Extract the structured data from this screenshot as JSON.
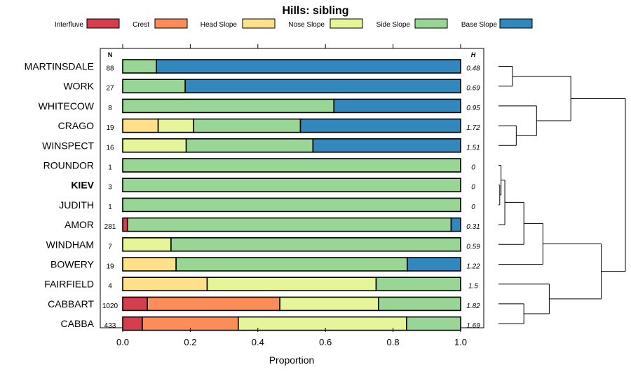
{
  "chart_data": {
    "type": "bar",
    "orientation": "horizontal",
    "stacked": true,
    "title": "Hills: sibling",
    "xlabel": "Proportion",
    "xlim": [
      0,
      1
    ],
    "xticks": [
      "0.0",
      "0.2",
      "0.4",
      "0.6",
      "0.8",
      "1.0"
    ],
    "xtick_values": [
      0,
      0.2,
      0.4,
      0.6,
      0.8,
      1.0
    ],
    "n_header": "N",
    "h_header": "H",
    "legend": [
      {
        "name": "Interfluve",
        "color": "#d53e4f"
      },
      {
        "name": "Crest",
        "color": "#fc8d59"
      },
      {
        "name": "Head Slope",
        "color": "#fee08b"
      },
      {
        "name": "Nose Slope",
        "color": "#e6f598"
      },
      {
        "name": "Side Slope",
        "color": "#99d594"
      },
      {
        "name": "Base Slope",
        "color": "#3288bd"
      }
    ],
    "rows": [
      {
        "name": "MARTINSDALE",
        "bold": false,
        "n": "88",
        "h": "0.48",
        "values": [
          0,
          0,
          0,
          0,
          0.1,
          0.9
        ]
      },
      {
        "name": "WORK",
        "bold": false,
        "n": "27",
        "h": "0.69",
        "values": [
          0,
          0,
          0,
          0,
          0.185,
          0.815
        ]
      },
      {
        "name": "WHITECOW",
        "bold": false,
        "n": "8",
        "h": "0.95",
        "values": [
          0,
          0,
          0,
          0,
          0.625,
          0.375
        ]
      },
      {
        "name": "CRAGO",
        "bold": false,
        "n": "19",
        "h": "1.72",
        "values": [
          0,
          0,
          0.105,
          0.105,
          0.316,
          0.474
        ]
      },
      {
        "name": "WINSPECT",
        "bold": false,
        "n": "16",
        "h": "1.51",
        "values": [
          0,
          0,
          0,
          0.188,
          0.375,
          0.437
        ]
      },
      {
        "name": "ROUNDOR",
        "bold": false,
        "n": "1",
        "h": "0",
        "values": [
          0,
          0,
          0,
          0,
          1.0,
          0
        ]
      },
      {
        "name": "KIEV",
        "bold": true,
        "n": "3",
        "h": "0",
        "values": [
          0,
          0,
          0,
          0,
          1.0,
          0
        ]
      },
      {
        "name": "JUDITH",
        "bold": false,
        "n": "1",
        "h": "0",
        "values": [
          0,
          0,
          0,
          0,
          1.0,
          0
        ]
      },
      {
        "name": "AMOR",
        "bold": false,
        "n": "281",
        "h": "0.31",
        "values": [
          0.014,
          0,
          0,
          0,
          0.958,
          0.028
        ]
      },
      {
        "name": "WINDHAM",
        "bold": false,
        "n": "7",
        "h": "0.59",
        "values": [
          0,
          0,
          0,
          0.143,
          0.857,
          0
        ]
      },
      {
        "name": "BOWERY",
        "bold": false,
        "n": "19",
        "h": "1.22",
        "values": [
          0,
          0,
          0.158,
          0,
          0.684,
          0.158
        ]
      },
      {
        "name": "FAIRFIELD",
        "bold": false,
        "n": "4",
        "h": "1.5",
        "values": [
          0,
          0,
          0.25,
          0.5,
          0.25,
          0
        ]
      },
      {
        "name": "CABBART",
        "bold": false,
        "n": "1020",
        "h": "1.82",
        "values": [
          0.073,
          0.392,
          0,
          0.292,
          0.243,
          0
        ]
      },
      {
        "name": "CABBA",
        "bold": false,
        "n": "433",
        "h": "1.69",
        "values": [
          0.058,
          0.284,
          0,
          0.498,
          0.16,
          0
        ]
      }
    ],
    "dendrogram_order": [
      "MARTINSDALE",
      "WORK",
      "WHITECOW",
      "CRAGO",
      "WINSPECT",
      "ROUNDOR",
      "KIEV",
      "JUDITH",
      "AMOR",
      "WINDHAM",
      "BOWERY",
      "FAIRFIELD",
      "CABBART",
      "CABBA"
    ],
    "dendrogram_merges": [
      {
        "a": "MARTINSDALE",
        "b": "WORK",
        "height": 0.11
      },
      {
        "a": "CRAGO",
        "b": "WINSPECT",
        "height": 0.14
      },
      {
        "a": "WHITECOW",
        "b": "c2",
        "height": 0.3
      },
      {
        "a": "c1",
        "b": "c3",
        "height": 0.57
      },
      {
        "a": "KIEV",
        "b": "JUDITH",
        "height": 0.01
      },
      {
        "a": "ROUNDOR",
        "b": "c5",
        "height": 0.02
      },
      {
        "a": "c6",
        "b": "AMOR",
        "height": 0.05
      },
      {
        "a": "c7",
        "b": "WINDHAM",
        "height": 0.2
      },
      {
        "a": "c8",
        "b": "BOWERY",
        "height": 0.35
      },
      {
        "a": "CABBART",
        "b": "CABBA",
        "height": 0.2
      },
      {
        "a": "FAIRFIELD",
        "b": "c10",
        "height": 0.4
      },
      {
        "a": "c9",
        "b": "c11",
        "height": 0.81
      },
      {
        "a": "c4",
        "b": "c12",
        "height": 1.0
      }
    ]
  }
}
